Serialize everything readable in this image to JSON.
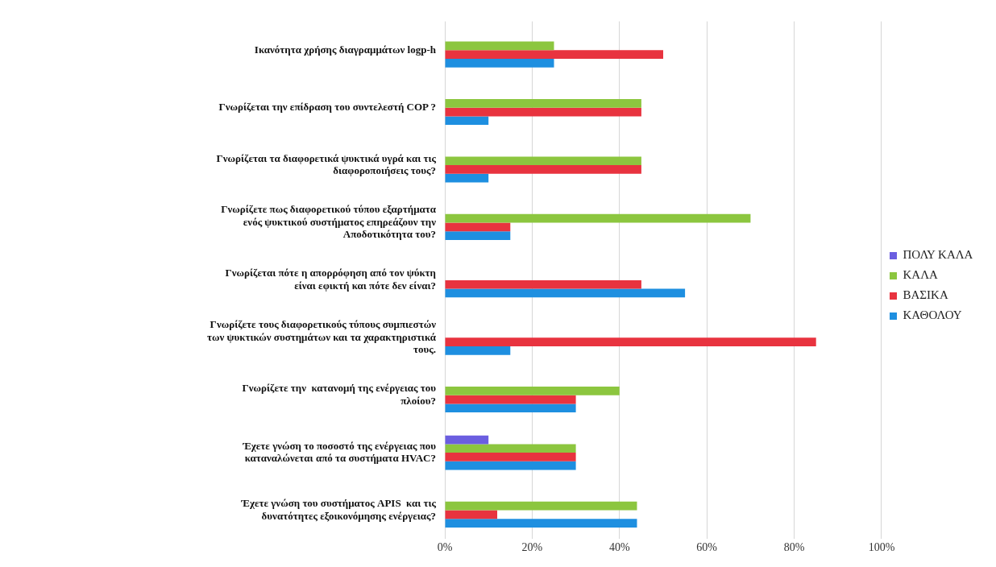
{
  "chart_data": {
    "type": "bar",
    "orientation": "horizontal",
    "categories": [
      "Ικανότητα χρήσης διαγραμμάτων logp-h",
      "Γνωρίζεται την επίδραση του συντελεστή COP ?",
      "Γνωρίζεται τα διαφορετικά ψυκτικά υγρά και τις διαφοροποιήσεις τους?",
      "Γνωρίζετε πως διαφορετικού τύπου εξαρτήματα ενός ψυκτικού συστήματος επηρεάζουν την Αποδοτικότητα του?",
      "Γνωρίζεται πότε η απορρόφηση από τον ψύκτη είναι εφικτή και πότε δεν είναι?",
      "Γνωρίζετε τους διαφορετικούς τύπους συμπιεστών των ψυκτικών συστημάτων και τα χαρακτηριστικά τους.",
      "Γνωρίζετε την  κατανομή της ενέργειας του πλοίου?",
      "Έχετε γνώση το ποσοστό της ενέργειας που καταναλώνεται από τα συστήματα HVAC?",
      "Έχετε γνώση του συστήματος APIS  και τις δυνατότητες εξοικονόμησης ενέργειας?"
    ],
    "series": [
      {
        "name": "ΠΟΛΥ ΚΑΛΑ",
        "color": "#6b5ee0",
        "values": [
          0,
          0,
          0,
          0,
          0,
          0,
          0,
          10,
          0
        ]
      },
      {
        "name": "ΚΑΛΑ",
        "color": "#8cc63f",
        "values": [
          25,
          45,
          45,
          70,
          0,
          0,
          40,
          30,
          44
        ]
      },
      {
        "name": "ΒΑΣΙΚΑ",
        "color": "#e8333f",
        "values": [
          50,
          45,
          45,
          15,
          45,
          85,
          30,
          30,
          12
        ]
      },
      {
        "name": "ΚΑΘΟΛΟΥ",
        "color": "#1e8fe0",
        "values": [
          25,
          10,
          10,
          15,
          55,
          15,
          30,
          30,
          44
        ]
      }
    ],
    "xlim": [
      0,
      100
    ],
    "xticks": [
      {
        "value": 0,
        "label": "0%"
      },
      {
        "value": 20,
        "label": "20%"
      },
      {
        "value": 40,
        "label": "40%"
      },
      {
        "value": 60,
        "label": "60%"
      },
      {
        "value": 80,
        "label": "80%"
      },
      {
        "value": 100,
        "label": "100%"
      }
    ],
    "grid": "x",
    "legend": "right"
  }
}
